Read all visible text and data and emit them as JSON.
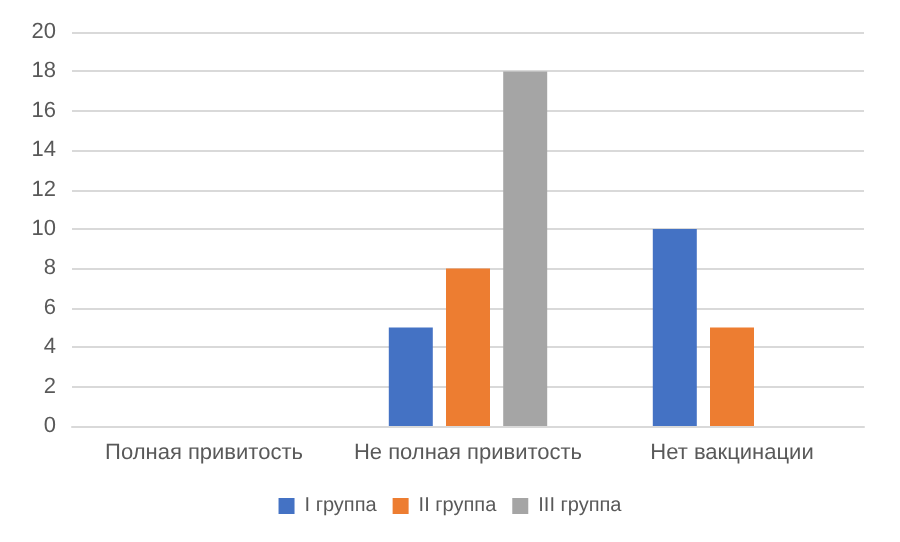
{
  "chart_data": {
    "type": "bar",
    "categories": [
      "Полная привитость",
      "Не полная привитость",
      "Нет вакцинации"
    ],
    "series": [
      {
        "name": "I группа",
        "color": "#4472c4",
        "values": [
          0,
          5,
          10
        ]
      },
      {
        "name": "II группа",
        "color": "#ed7d31",
        "values": [
          0,
          8,
          5
        ]
      },
      {
        "name": "III группа",
        "color": "#a5a5a5",
        "values": [
          0,
          18,
          0
        ]
      }
    ],
    "ylim": [
      0,
      20
    ],
    "yticks": [
      0,
      2,
      4,
      6,
      8,
      10,
      12,
      14,
      16,
      18,
      20
    ],
    "grid": "y",
    "legend": "bottom"
  }
}
